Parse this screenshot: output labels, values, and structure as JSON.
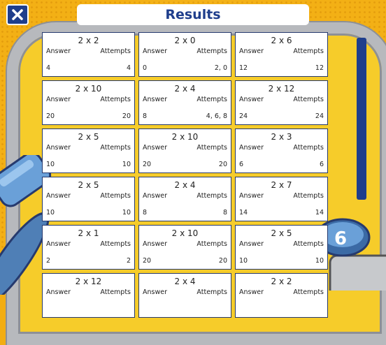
{
  "header": {
    "title": "Results"
  },
  "labels": {
    "answer": "Answer",
    "attempts": "Attempts"
  },
  "colors": {
    "accent": "#1f3e8c",
    "background": "#f3b015"
  },
  "icons": {
    "close": "close-icon"
  },
  "results": [
    {
      "question": "2 x 2",
      "answer": "4",
      "attempts": "4"
    },
    {
      "question": "2 x 0",
      "answer": "0",
      "attempts": "2, 0"
    },
    {
      "question": "2 x 6",
      "answer": "12",
      "attempts": "12"
    },
    {
      "question": "2 x 10",
      "answer": "20",
      "attempts": "20"
    },
    {
      "question": "2 x 4",
      "answer": "8",
      "attempts": "4, 6, 8"
    },
    {
      "question": "2 x 12",
      "answer": "24",
      "attempts": "24"
    },
    {
      "question": "2 x 5",
      "answer": "10",
      "attempts": "10"
    },
    {
      "question": "2 x 10",
      "answer": "20",
      "attempts": "20"
    },
    {
      "question": "2 x 3",
      "answer": "6",
      "attempts": "6"
    },
    {
      "question": "2 x 5",
      "answer": "10",
      "attempts": "10"
    },
    {
      "question": "2 x 4",
      "answer": "8",
      "attempts": "8"
    },
    {
      "question": "2 x 7",
      "answer": "14",
      "attempts": "14"
    },
    {
      "question": "2 x 1",
      "answer": "2",
      "attempts": "2"
    },
    {
      "question": "2 x 10",
      "answer": "20",
      "attempts": "20"
    },
    {
      "question": "2 x 5",
      "answer": "10",
      "attempts": "10"
    },
    {
      "question": "2 x 12",
      "answer": "",
      "attempts": ""
    },
    {
      "question": "2 x 4",
      "answer": "",
      "attempts": ""
    },
    {
      "question": "2 x 2",
      "answer": "",
      "attempts": ""
    }
  ],
  "decor": {
    "robot_badge": "6"
  }
}
